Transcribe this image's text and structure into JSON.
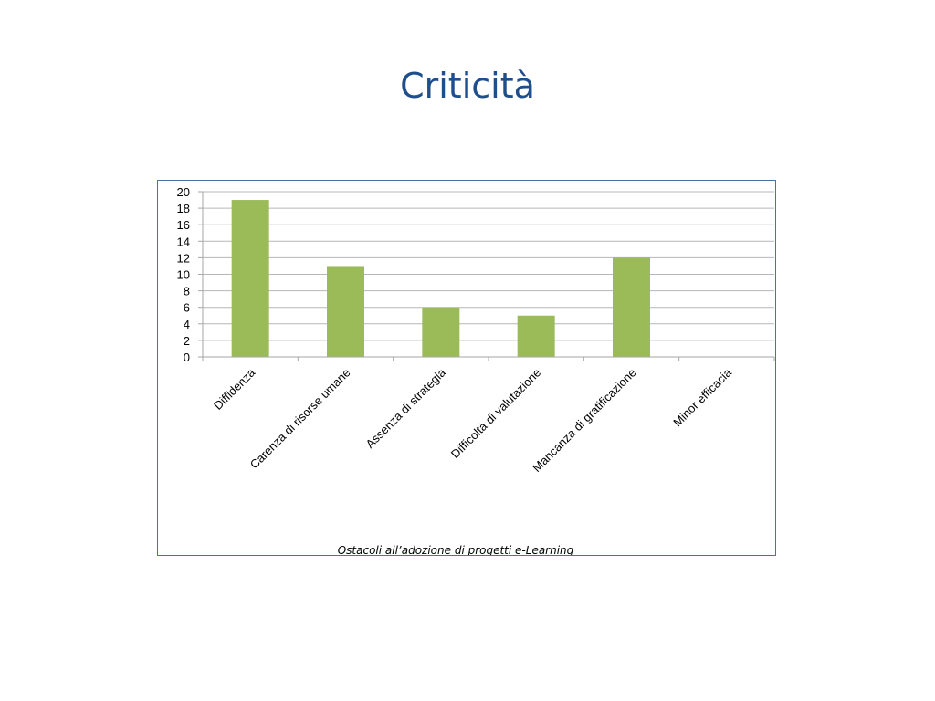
{
  "slide": {
    "title": "Criticità"
  },
  "chart_data": {
    "type": "bar",
    "categories": [
      "Diffidenza",
      "Carenza di risorse umane",
      "Assenza di strategia",
      "Difficoltà di valutazione",
      "Mancanza di gratificazione",
      "Minor efficacia"
    ],
    "values": [
      19,
      11,
      6,
      5,
      12,
      0
    ],
    "title": "",
    "xlabel": "Ostacoli all’adozione di progetti e-Learning",
    "ylabel": "",
    "ylim": [
      0,
      20
    ],
    "yticks": [
      0,
      2,
      4,
      6,
      8,
      10,
      12,
      14,
      16,
      18,
      20
    ],
    "grid": true,
    "legend": "none",
    "colors": {
      "bar": "#9bbb59",
      "grid": "#b7b7b7",
      "axis": "#a6a6a6",
      "title": "#1f4e8c",
      "frame": "#4f6fa8"
    }
  }
}
